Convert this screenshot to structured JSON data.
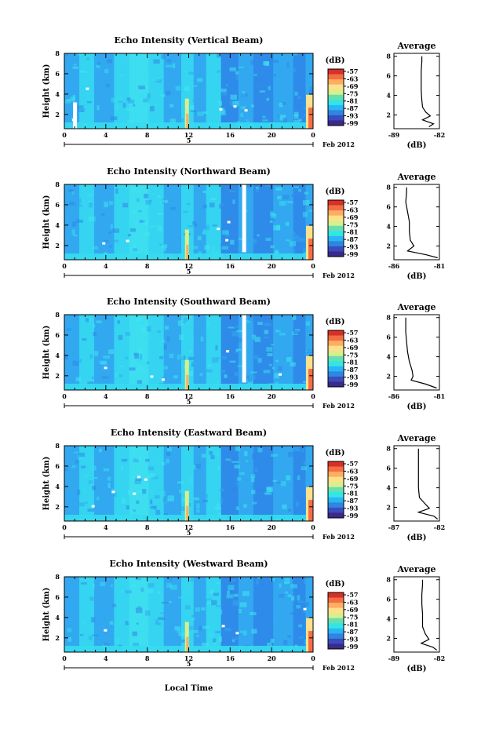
{
  "figure": {
    "xlabel": "Local Time",
    "date_label": "Feb 2012",
    "day_label": "5"
  },
  "chart_data": [
    {
      "type": "heatmap",
      "title": "Echo Intensity (Vertical Beam)",
      "ylabel": "Height (km)",
      "x_ticks": [
        "0",
        "4",
        "8",
        "12",
        "16",
        "20",
        "0"
      ],
      "x_range": [
        0,
        24
      ],
      "y_ticks": [
        "2",
        "4",
        "6",
        "8"
      ],
      "y_range": [
        0.6,
        8
      ],
      "colorbar_label": "(dB)",
      "colorbar_ticks": [
        "-57",
        "-63",
        "-69",
        "-75",
        "-81",
        "-87",
        "-93",
        "-99"
      ],
      "avg_title": "Average",
      "avg_xlabel": "(dB)",
      "avg_x_ticks": [
        "-89",
        "-82"
      ],
      "avg_x_range": [
        -89,
        -82
      ],
      "avg_y_ticks": [
        "2",
        "4",
        "6",
        "8"
      ],
      "avg_profile": [
        [
          -83.6,
          0.8
        ],
        [
          -82.9,
          1.1
        ],
        [
          -84.6,
          1.5
        ],
        [
          -83.4,
          1.9
        ],
        [
          -84.1,
          2.3
        ],
        [
          -84.6,
          2.8
        ],
        [
          -84.7,
          3.5
        ],
        [
          -84.8,
          4.5
        ],
        [
          -84.8,
          5.5
        ],
        [
          -84.8,
          6.5
        ],
        [
          -84.7,
          7.5
        ],
        [
          -84.7,
          8.0
        ]
      ]
    },
    {
      "type": "heatmap",
      "title": "Echo Intensity (Northward Beam)",
      "ylabel": "Height (km)",
      "x_ticks": [
        "0",
        "4",
        "8",
        "12",
        "16",
        "20",
        "0"
      ],
      "x_range": [
        0,
        24
      ],
      "y_ticks": [
        "2",
        "4",
        "6",
        "8"
      ],
      "y_range": [
        0.6,
        8
      ],
      "colorbar_label": "(dB)",
      "colorbar_ticks": [
        "-57",
        "-63",
        "-69",
        "-75",
        "-81",
        "-87",
        "-93",
        "-99"
      ],
      "avg_title": "Average",
      "avg_xlabel": "(dB)",
      "avg_x_ticks": [
        "-86",
        "-81"
      ],
      "avg_x_range": [
        -86,
        -81
      ],
      "avg_y_ticks": [
        "2",
        "4",
        "6",
        "8"
      ],
      "avg_profile": [
        [
          -81.2,
          0.8
        ],
        [
          -82.4,
          1.1
        ],
        [
          -84.5,
          1.5
        ],
        [
          -83.8,
          2.0
        ],
        [
          -84.2,
          2.6
        ],
        [
          -84.3,
          3.5
        ],
        [
          -84.3,
          4.5
        ],
        [
          -84.5,
          5.5
        ],
        [
          -84.7,
          6.5
        ],
        [
          -84.6,
          7.5
        ],
        [
          -84.6,
          8.0
        ]
      ]
    },
    {
      "type": "heatmap",
      "title": "Echo Intensity (Southward Beam)",
      "ylabel": "Height (km)",
      "x_ticks": [
        "0",
        "4",
        "8",
        "12",
        "16",
        "20",
        "0"
      ],
      "x_range": [
        0,
        24
      ],
      "y_ticks": [
        "2",
        "4",
        "6",
        "8"
      ],
      "y_range": [
        0.6,
        8
      ],
      "colorbar_label": "(dB)",
      "colorbar_ticks": [
        "-57",
        "-63",
        "-69",
        "-75",
        "-81",
        "-87",
        "-93",
        "-99"
      ],
      "avg_title": "Average",
      "avg_xlabel": "(dB)",
      "avg_x_ticks": [
        "-86",
        "-81"
      ],
      "avg_x_range": [
        -86,
        -81
      ],
      "avg_y_ticks": [
        "2",
        "4",
        "6",
        "8"
      ],
      "avg_profile": [
        [
          -81.3,
          0.8
        ],
        [
          -82.5,
          1.2
        ],
        [
          -84.1,
          1.6
        ],
        [
          -83.9,
          2.0
        ],
        [
          -84.0,
          2.6
        ],
        [
          -84.3,
          3.5
        ],
        [
          -84.5,
          4.5
        ],
        [
          -84.6,
          5.5
        ],
        [
          -84.7,
          6.5
        ],
        [
          -84.7,
          7.5
        ],
        [
          -84.7,
          8.0
        ]
      ]
    },
    {
      "type": "heatmap",
      "title": "Echo Intensity (Eastward Beam)",
      "ylabel": "Height (km)",
      "x_ticks": [
        "0",
        "4",
        "8",
        "12",
        "16",
        "20",
        "0"
      ],
      "x_range": [
        0,
        24
      ],
      "y_ticks": [
        "2",
        "4",
        "6",
        "8"
      ],
      "y_range": [
        0.6,
        8
      ],
      "colorbar_label": "(dB)",
      "colorbar_ticks": [
        "-57",
        "-63",
        "-69",
        "-75",
        "-81",
        "-87",
        "-93",
        "-99"
      ],
      "avg_title": "Average",
      "avg_xlabel": "(dB)",
      "avg_x_ticks": [
        "-87",
        "-82"
      ],
      "avg_x_range": [
        -87,
        -82
      ],
      "avg_y_ticks": [
        "2",
        "4",
        "6",
        "8"
      ],
      "avg_profile": [
        [
          -82.2,
          0.8
        ],
        [
          -82.6,
          1.1
        ],
        [
          -84.3,
          1.5
        ],
        [
          -83.1,
          1.9
        ],
        [
          -83.6,
          2.4
        ],
        [
          -84.2,
          3.0
        ],
        [
          -84.3,
          4.0
        ],
        [
          -84.3,
          5.0
        ],
        [
          -84.3,
          6.0
        ],
        [
          -84.3,
          7.0
        ],
        [
          -84.3,
          8.0
        ]
      ]
    },
    {
      "type": "heatmap",
      "title": "Echo Intensity (Westward Beam)",
      "ylabel": "Height (km)",
      "x_ticks": [
        "0",
        "4",
        "8",
        "12",
        "16",
        "20",
        "0"
      ],
      "x_range": [
        0,
        24
      ],
      "y_ticks": [
        "2",
        "4",
        "6",
        "8"
      ],
      "y_range": [
        0.6,
        8
      ],
      "colorbar_label": "(dB)",
      "colorbar_ticks": [
        "-57",
        "-63",
        "-69",
        "-75",
        "-81",
        "-87",
        "-93",
        "-99"
      ],
      "avg_title": "Average",
      "avg_xlabel": "(dB)",
      "avg_x_ticks": [
        "-89",
        "-82"
      ],
      "avg_x_range": [
        -89,
        -82
      ],
      "avg_y_ticks": [
        "2",
        "4",
        "6",
        "8"
      ],
      "avg_profile": [
        [
          -82.4,
          0.8
        ],
        [
          -83.0,
          1.1
        ],
        [
          -84.8,
          1.5
        ],
        [
          -83.6,
          1.9
        ],
        [
          -84.2,
          2.5
        ],
        [
          -84.6,
          3.2
        ],
        [
          -84.6,
          4.5
        ],
        [
          -84.7,
          5.5
        ],
        [
          -84.7,
          6.5
        ],
        [
          -84.6,
          7.5
        ],
        [
          -84.6,
          8.0
        ]
      ]
    }
  ]
}
